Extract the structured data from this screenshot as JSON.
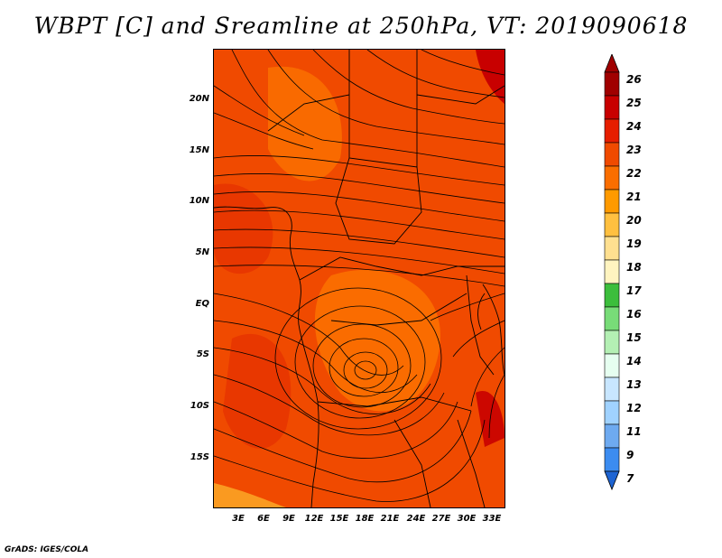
{
  "title": "WBPT [C] and Sreamline at 250hPa, VT: 2019090618",
  "footer": "GrADS: IGES/COLA",
  "map": {
    "y_axis_labels": [
      "20N",
      "15N",
      "10N",
      "5N",
      "EQ",
      "5S",
      "10S",
      "15S"
    ],
    "x_axis_labels": [
      "3E",
      "6E",
      "9E",
      "12E",
      "15E",
      "18E",
      "21E",
      "24E",
      "27E",
      "30E",
      "33E"
    ],
    "variable": "Wet-bulb potential temperature",
    "level": "250hPa",
    "valid_time": "2019090618",
    "circulation_center": "anticyclonic vortex near 18E, 7S"
  },
  "colorbar": {
    "levels": [
      "26",
      "25",
      "24",
      "23",
      "22",
      "21",
      "20",
      "19",
      "18",
      "17",
      "16",
      "15",
      "14",
      "13",
      "12",
      "11",
      "9",
      "7"
    ],
    "colors": [
      "#a00000",
      "#c80000",
      "#e61e00",
      "#f04a00",
      "#fa6e00",
      "#ff9a00",
      "#ffc040",
      "#ffe090",
      "#fff4c0",
      "#3cbe3c",
      "#78dc78",
      "#b4f0b4",
      "#e6fff0",
      "#c8e6ff",
      "#a0d2ff",
      "#6eaaf0",
      "#3c8cf0",
      "#1e64d2"
    ]
  }
}
